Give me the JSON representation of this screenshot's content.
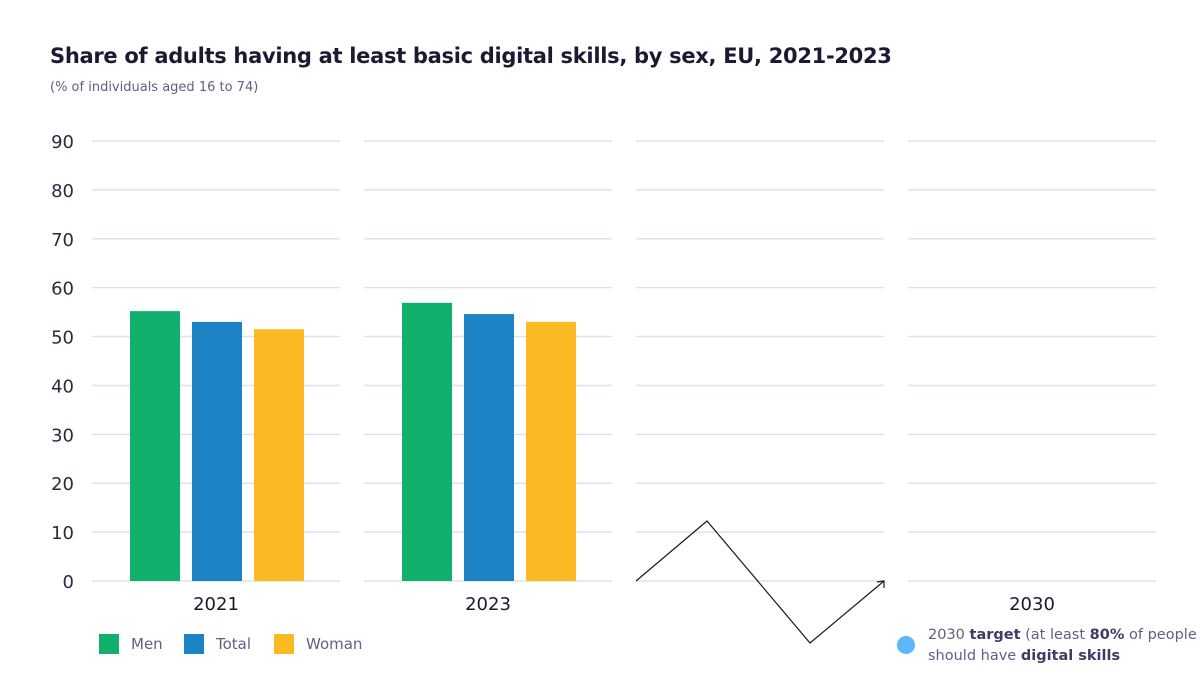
{
  "chart_data": {
    "type": "bar",
    "title": "Share of adults having at least basic digital skills, by sex, EU, 2021-2023",
    "subtitle": "(% of individuals aged 16 to 74)",
    "categories": [
      "2021",
      "2023",
      "",
      "2030"
    ],
    "ylim": [
      0,
      90
    ],
    "yticks": [
      0,
      10,
      20,
      30,
      40,
      50,
      60,
      70,
      80,
      90
    ],
    "grid": true,
    "legend_position": "bottom-left",
    "series": [
      {
        "name": "Men",
        "color": "#11b06c",
        "values": [
          55.2,
          56.9,
          null,
          null
        ]
      },
      {
        "name": "Total",
        "color": "#1c84c4",
        "values": [
          53.0,
          54.6,
          null,
          null
        ]
      },
      {
        "name": "Woman",
        "color": "#fbb924",
        "values": [
          51.5,
          53.0,
          null,
          null
        ]
      }
    ],
    "annotation": {
      "color": "#5ab8fb",
      "parts": [
        {
          "text": "2030 ",
          "bold": false
        },
        {
          "text": "target",
          "bold": true
        },
        {
          "text": " (at least ",
          "bold": false
        },
        {
          "text": "80%",
          "bold": true
        },
        {
          "text": " of people should have ",
          "bold": false
        },
        {
          "text": "digital skills",
          "bold": true
        }
      ]
    }
  }
}
